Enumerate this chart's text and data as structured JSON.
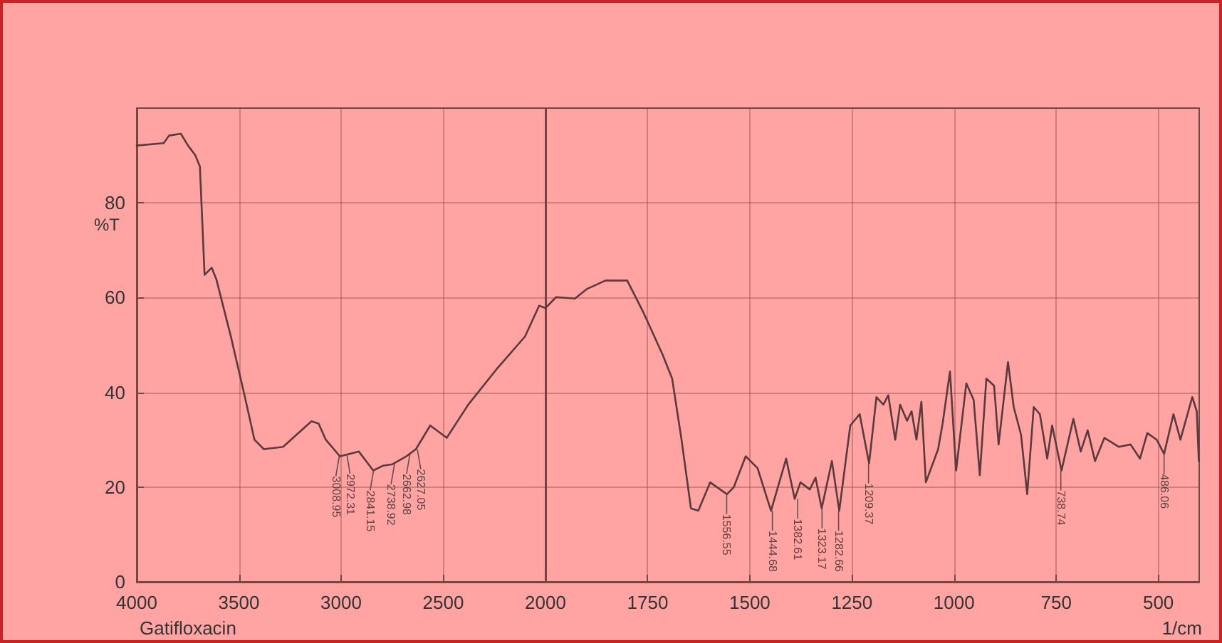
{
  "chart_data": [
    {
      "type": "line",
      "ylabel": "%T",
      "xlim": [
        4000,
        2000
      ],
      "xticks": [
        4000,
        3500,
        3000,
        2500,
        2000
      ],
      "ylim": [
        0,
        100
      ],
      "yticks": [
        0,
        20,
        40,
        60,
        80
      ],
      "grid": true,
      "marker": "none",
      "line_style": "solid",
      "series": [
        {
          "color": "#5a3a3a",
          "x": [
            4000,
            3868,
            3842,
            3784,
            3749,
            3714,
            3691,
            3668,
            3633,
            3610,
            3540,
            3470,
            3424,
            3378,
            3284,
            3145,
            3110,
            3075,
            3006,
            2960,
            2913,
            2843,
            2796,
            2750,
            2681,
            2634,
            2564,
            2483,
            2378,
            2239,
            2100,
            2031,
            2000
          ],
          "values": [
            92.1,
            92.6,
            94.2,
            94.6,
            92.1,
            90.1,
            87.7,
            64.8,
            66.3,
            63.8,
            51.9,
            38.9,
            30,
            28,
            28.5,
            33.9,
            33.4,
            30,
            26.5,
            27,
            27.5,
            23.5,
            24.5,
            24.8,
            26.5,
            28,
            33,
            30.4,
            37.4,
            44.9,
            51.8,
            58.3,
            57.8
          ]
        }
      ],
      "annotations": [
        "Gatifloxacin",
        {
          "text": "3008.95",
          "x": 3008.95,
          "y": 26.5
        },
        {
          "text": "2972.31",
          "x": 2972.31,
          "y": 27
        },
        {
          "text": "2841.15",
          "x": 2841.15,
          "y": 23.5
        },
        {
          "text": "2738.92",
          "x": 2738.92,
          "y": 24.8
        },
        {
          "text": "2662.98",
          "x": 2662.98,
          "y": 27
        },
        {
          "text": "2627.05",
          "x": 2627.05,
          "y": 28
        }
      ]
    },
    {
      "type": "line",
      "xlabel": "1/cm",
      "xlim": [
        2000,
        400
      ],
      "xticks": [
        1750,
        1500,
        1250,
        1000,
        750,
        500
      ],
      "ylim": [
        0,
        100
      ],
      "yticks": [
        0,
        20,
        40,
        60,
        80
      ],
      "tick_labels": "x",
      "grid": true,
      "marker": "none",
      "line_style": "solid",
      "series": [
        {
          "color": "#5a3a3a",
          "x": [
            2000,
            1974,
            1928,
            1899,
            1853,
            1800,
            1760,
            1713,
            1690,
            1667,
            1644,
            1626,
            1597,
            1556,
            1539,
            1510,
            1481,
            1448,
            1411,
            1390,
            1376,
            1353,
            1339,
            1324,
            1299,
            1281,
            1254,
            1231,
            1208,
            1190,
            1173,
            1161,
            1144,
            1132,
            1115,
            1104,
            1092,
            1080,
            1069,
            1039,
            1028,
            1010,
            995,
            970,
            952,
            937,
            921,
            902,
            891,
            868,
            854,
            836,
            821,
            805,
            790,
            772,
            760,
            737,
            708,
            690,
            673,
            655,
            632,
            597,
            568,
            545,
            527,
            504,
            486,
            463,
            446,
            417,
            406,
            401
          ],
          "values": [
            57.8,
            60.1,
            59.8,
            61.8,
            63.6,
            63.6,
            56.8,
            47.9,
            42.9,
            30,
            15.5,
            15,
            21,
            18.5,
            20,
            26.5,
            24,
            15,
            26,
            17.5,
            21,
            19.5,
            22,
            15.5,
            25.5,
            15,
            33,
            35.4,
            25,
            39,
            37.4,
            39.4,
            30,
            37.4,
            34,
            36,
            30,
            38,
            21,
            28,
            33.4,
            44.4,
            23.5,
            41.9,
            38.4,
            22.5,
            42.9,
            41.4,
            29,
            46.4,
            36.9,
            31,
            18.5,
            36.9,
            35.4,
            26,
            33,
            23.5,
            34.4,
            27.5,
            32,
            25.5,
            30.4,
            28.5,
            29,
            26,
            31.4,
            30,
            27,
            35.4,
            30,
            39,
            36,
            25.5
          ]
        }
      ],
      "annotations": [
        {
          "text": "1556.55",
          "x": 1556.55,
          "y": 18.5
        },
        {
          "text": "1444.68",
          "x": 1444.68,
          "y": 15
        },
        {
          "text": "1382.61",
          "x": 1382.61,
          "y": 17.5
        },
        {
          "text": "1323.17",
          "x": 1323.17,
          "y": 15.5
        },
        {
          "text": "1282.66",
          "x": 1282.66,
          "y": 15
        },
        {
          "text": "1209.37",
          "x": 1209.37,
          "y": 25
        },
        {
          "text": "738.74",
          "x": 738.74,
          "y": 23.5
        },
        {
          "text": "486.06",
          "x": 486.06,
          "y": 27
        }
      ]
    }
  ]
}
